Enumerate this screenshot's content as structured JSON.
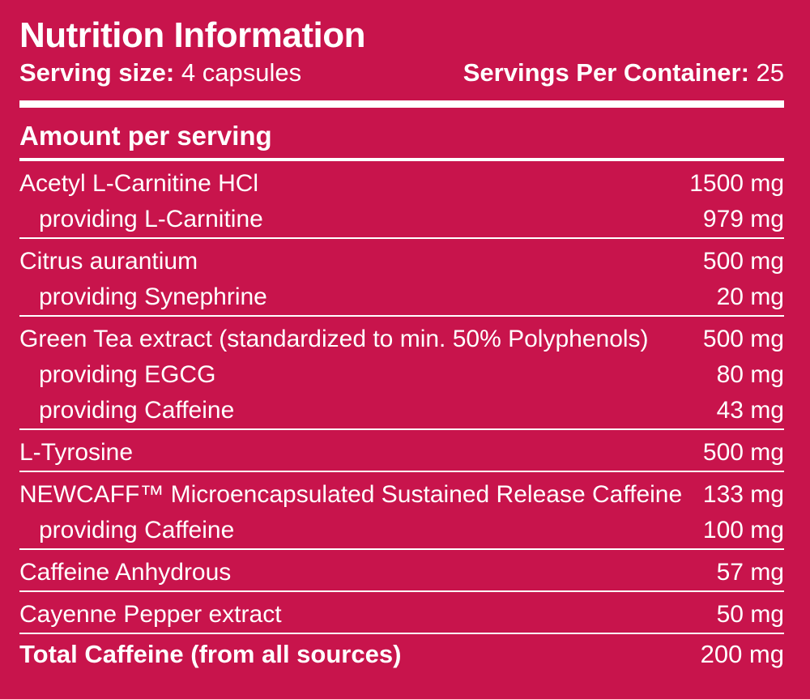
{
  "colors": {
    "background": "#c8144c",
    "text": "#ffffff"
  },
  "header": {
    "title": "Nutrition Information",
    "serving_size_label": "Serving size:",
    "serving_size_value": "4 capsules",
    "servings_per_container_label": "Servings Per Container:",
    "servings_per_container_value": "25"
  },
  "amount_per_serving_label": "Amount per serving",
  "groups": [
    {
      "rows": [
        {
          "name": "Acetyl L-Carnitine HCl",
          "amount": "1500 mg"
        },
        {
          "name": "providing L-Carnitine",
          "amount": "979 mg"
        }
      ]
    },
    {
      "rows": [
        {
          "name": "Citrus aurantium",
          "amount": "500 mg"
        },
        {
          "name": "providing Synephrine",
          "amount": "20 mg"
        }
      ]
    },
    {
      "rows": [
        {
          "name": "Green Tea extract (standardized to min. 50% Polyphenols)",
          "amount": "500 mg"
        },
        {
          "name": "providing EGCG",
          "amount": "80 mg"
        },
        {
          "name": "providing Caffeine",
          "amount": "43 mg"
        }
      ]
    },
    {
      "rows": [
        {
          "name": "L-Tyrosine",
          "amount": "500 mg"
        }
      ]
    },
    {
      "rows": [
        {
          "name": "NEWCAFF™ Microencapsulated Sustained Release Caffeine",
          "amount": "133 mg"
        },
        {
          "name": "providing Caffeine",
          "amount": "100 mg"
        }
      ]
    },
    {
      "rows": [
        {
          "name": "Caffeine Anhydrous",
          "amount": "57 mg"
        }
      ]
    },
    {
      "rows": [
        {
          "name": "Cayenne Pepper extract",
          "amount": "50 mg"
        }
      ]
    }
  ],
  "total": {
    "label": "Total Caffeine (from all sources)",
    "amount": "200 mg"
  }
}
